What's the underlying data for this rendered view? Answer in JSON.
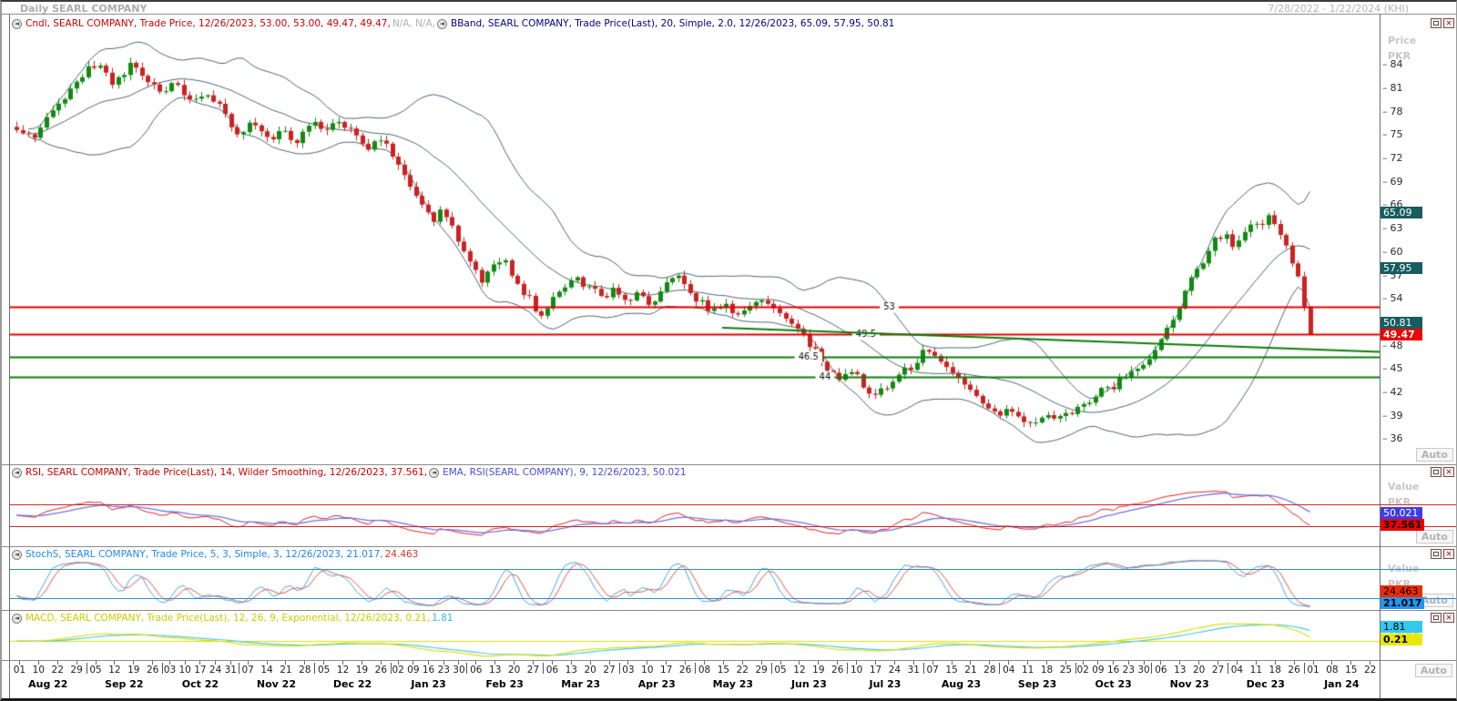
{
  "window": {
    "title": "Daily SEARL COMPANY",
    "date_range": "7/28/2022 - 1/22/2024 (KHI)",
    "auto_label": "Auto"
  },
  "colors": {
    "candle_up": "#128a12",
    "candle_down": "#cc2222",
    "bband": "#4a6672",
    "resistance": "#e00000",
    "support": "#0b7d0b",
    "rsi_line": "#e02020",
    "rsi_ema_line": "#7373de",
    "rsi_threshold": "#cc2b2b",
    "stoch_k": "#4aa3e0",
    "stoch_d": "#e05545",
    "stoch_threshold": "#2e8fd0",
    "macd_line": "#dede00",
    "macd_signal": "#49c9ef",
    "badge_teal": "#175d60",
    "badge_red": "#ee0000",
    "badge_indigo": "#3d3de8",
    "badge_orange": "#ee2b00",
    "badge_blue": "#2196f3",
    "badge_cyan": "#35c8ef",
    "badge_yellow": "#e8e800"
  },
  "panels": {
    "price": {
      "axis_label_1": "Price",
      "axis_label_2": "PKR",
      "legend_items": [
        {
          "segments": [
            {
              "t": "Cndl, SEARL COMPANY, Trade Price,  12/26/2023, 53.00, 53.00, 49.47, 49.47, ",
              "c": "#cc0000"
            },
            {
              "t": "N/A, N/A, ",
              "c": "#b0b0b0"
            }
          ]
        },
        {
          "segments": [
            {
              "t": "BBand, SEARL COMPANY, Trade Price(Last),  20, Simple, 2.0,  12/26/2023, 65.09, 57.95, 50.81",
              "c": "#000080"
            }
          ]
        }
      ],
      "badges": [
        {
          "text": "65.09",
          "v": 65.09,
          "bg": "badge_teal",
          "fg": "#ffffff",
          "bold": false
        },
        {
          "text": "57.95",
          "v": 57.95,
          "bg": "badge_teal",
          "fg": "#ffffff",
          "bold": false
        },
        {
          "text": "50.81",
          "v": 50.81,
          "bg": "badge_teal",
          "fg": "#ffffff",
          "bold": false
        },
        {
          "text": "49.47",
          "v": 49.47,
          "bg": "badge_red",
          "fg": "#ffffff",
          "bold": true
        }
      ]
    },
    "rsi": {
      "axis_label_1": "Value",
      "axis_label_2": "PKR",
      "legend_items": [
        {
          "segments": [
            {
              "t": "RSI, SEARL COMPANY, Trade Price(Last),  14, Wilder Smoothing,  12/26/2023, 37.561, ",
              "c": "#cc0000"
            }
          ]
        },
        {
          "segments": [
            {
              "t": "EMA, RSI(SEARL COMPANY),  9,  12/26/2023, 50.021",
              "c": "#4b4bd6"
            }
          ]
        }
      ],
      "badges": [
        {
          "text": "50.021",
          "v": 50.021,
          "bg": "badge_indigo",
          "fg": "#ffffff",
          "bold": false
        },
        {
          "text": "37.561",
          "v": 37.561,
          "bg": "badge_red",
          "fg": "#000000",
          "bold": true
        }
      ],
      "thresholds": [
        70,
        30
      ]
    },
    "stoch": {
      "axis_label_1": "Value",
      "axis_label_2": "PKR",
      "legend_items": [
        {
          "segments": [
            {
              "t": "StochS, SEARL COMPANY, Trade Price,  5, 3, Simple, 3,  12/26/2023, 21.017, ",
              "c": "#2288ee"
            },
            {
              "t": "24.463",
              "c": "#dd3322"
            }
          ]
        }
      ],
      "badges": [
        {
          "text": "24.463",
          "v": 24.463,
          "bg": "badge_orange",
          "fg": "#000000",
          "bold": false
        },
        {
          "text": "21.017",
          "v": 21.017,
          "bg": "badge_blue",
          "fg": "#000000",
          "bold": true
        }
      ],
      "thresholds": [
        80,
        20
      ]
    },
    "macd": {
      "axis_label_1": "Value",
      "legend_items": [
        {
          "segments": [
            {
              "t": "MACD, SEARL COMPANY, Trade Price(Last),  12, 26, 9, Exponential,  12/26/2023, 0.21, ",
              "c": "#cccc00"
            },
            {
              "t": "1.81",
              "c": "#33bbee"
            }
          ]
        }
      ],
      "badges": [
        {
          "text": "1.81",
          "v": 1.81,
          "bg": "badge_cyan",
          "fg": "#000000",
          "bold": false
        },
        {
          "text": "0.21",
          "v": 0.21,
          "bg": "badge_yellow",
          "fg": "#000000",
          "bold": true
        }
      ]
    }
  },
  "xaxis": {
    "months": [
      {
        "label": "Aug 22",
        "days": [
          "01",
          "10",
          "22",
          "29"
        ]
      },
      {
        "label": "Sep 22",
        "days": [
          "05",
          "12",
          "19",
          "26"
        ]
      },
      {
        "label": "Oct 22",
        "days": [
          "03",
          "10",
          "17",
          "24",
          "31"
        ]
      },
      {
        "label": "Nov 22",
        "days": [
          "07",
          "14",
          "21",
          "28"
        ]
      },
      {
        "label": "Dec 22",
        "days": [
          "05",
          "12",
          "19",
          "26"
        ]
      },
      {
        "label": "Jan 23",
        "days": [
          "02",
          "09",
          "16",
          "23",
          "30"
        ]
      },
      {
        "label": "Feb 23",
        "days": [
          "06",
          "13",
          "20",
          "27"
        ]
      },
      {
        "label": "Mar 23",
        "days": [
          "06",
          "13",
          "20",
          "27"
        ]
      },
      {
        "label": "Apr 23",
        "days": [
          "03",
          "10",
          "17",
          "26"
        ]
      },
      {
        "label": "May 23",
        "days": [
          "08",
          "15",
          "22",
          "29"
        ]
      },
      {
        "label": "Jun 23",
        "days": [
          "05",
          "12",
          "19",
          "26"
        ]
      },
      {
        "label": "Jul 23",
        "days": [
          "10",
          "17",
          "24",
          "31"
        ]
      },
      {
        "label": "Aug 23",
        "days": [
          "07",
          "15",
          "21",
          "28"
        ]
      },
      {
        "label": "Sep 23",
        "days": [
          "04",
          "11",
          "18",
          "25"
        ]
      },
      {
        "label": "Oct 23",
        "days": [
          "02",
          "09",
          "16",
          "23",
          "30"
        ]
      },
      {
        "label": "Nov 23",
        "days": [
          "06",
          "13",
          "20",
          "27"
        ]
      },
      {
        "label": "Dec 23",
        "days": [
          "04",
          "11",
          "18",
          "26"
        ]
      },
      {
        "label": "Jan 24",
        "days": [
          "01",
          "08",
          "15",
          "22"
        ]
      }
    ]
  },
  "chart_data": {
    "type": "candlestick",
    "title": "Daily SEARL COMPANY",
    "instrument": "SEARL COMPANY",
    "interval": "Daily",
    "x_range": [
      "Aug 22",
      "Jan 24"
    ],
    "y_axis": {
      "label": "Price PKR",
      "tick_min": 36,
      "tick_max": 84,
      "tick_step": 3,
      "scale_min": 33,
      "scale_max": 90
    },
    "last_candle": {
      "date": "12/26/2023",
      "open": 53.0,
      "high": 53.0,
      "low": 49.47,
      "close": 49.47
    },
    "bollinger": {
      "period": 20,
      "type": "Simple",
      "stdev": 2.0,
      "upper": 65.09,
      "middle": 57.95,
      "lower": 50.81
    },
    "horizontal_levels": [
      {
        "price": 53,
        "label": "53",
        "color": "resistance",
        "label_x": 0.642
      },
      {
        "price": 49.5,
        "label": "49.5",
        "color": "resistance",
        "label_x": 0.625
      },
      {
        "price": 46.5,
        "label": "46.5",
        "color": "support",
        "label_x": 0.583
      },
      {
        "price": 44,
        "label": "44",
        "color": "support",
        "label_x": 0.595
      }
    ],
    "trendline": {
      "from_frac": 0.52,
      "from_price": 50.3,
      "to_frac": 1.0,
      "to_price": 47.2,
      "color": "support"
    },
    "data_end_frac": 0.954,
    "close_keyframes": [
      [
        0,
        75.5
      ],
      [
        0.012,
        74.6
      ],
      [
        0.03,
        78.5
      ],
      [
        0.05,
        82.5
      ],
      [
        0.062,
        84.4
      ],
      [
        0.075,
        81.5
      ],
      [
        0.088,
        83.8
      ],
      [
        0.1,
        82.3
      ],
      [
        0.112,
        80.2
      ],
      [
        0.122,
        82
      ],
      [
        0.135,
        79.2
      ],
      [
        0.148,
        80.8
      ],
      [
        0.16,
        77.6
      ],
      [
        0.172,
        75.2
      ],
      [
        0.182,
        76.8
      ],
      [
        0.195,
        74.6
      ],
      [
        0.205,
        76
      ],
      [
        0.215,
        74.2
      ],
      [
        0.228,
        76.6
      ],
      [
        0.24,
        75.2
      ],
      [
        0.25,
        77
      ],
      [
        0.262,
        75.4
      ],
      [
        0.272,
        73.6
      ],
      [
        0.282,
        74.8
      ],
      [
        0.292,
        71.8
      ],
      [
        0.302,
        69.2
      ],
      [
        0.312,
        66.8
      ],
      [
        0.322,
        64.2
      ],
      [
        0.33,
        65.6
      ],
      [
        0.34,
        61.8
      ],
      [
        0.35,
        58.8
      ],
      [
        0.36,
        56
      ],
      [
        0.368,
        58
      ],
      [
        0.376,
        58.8
      ],
      [
        0.386,
        56.2
      ],
      [
        0.396,
        53.8
      ],
      [
        0.404,
        51.4
      ],
      [
        0.414,
        53.8
      ],
      [
        0.424,
        55.6
      ],
      [
        0.434,
        56.6
      ],
      [
        0.444,
        55
      ],
      [
        0.452,
        54
      ],
      [
        0.46,
        55.6
      ],
      [
        0.47,
        53.6
      ],
      [
        0.48,
        54.8
      ],
      [
        0.49,
        53.2
      ],
      [
        0.5,
        55
      ],
      [
        0.508,
        57.6
      ],
      [
        0.518,
        55.2
      ],
      [
        0.528,
        53.6
      ],
      [
        0.538,
        52.4
      ],
      [
        0.546,
        53.6
      ],
      [
        0.556,
        52
      ],
      [
        0.566,
        53.2
      ],
      [
        0.576,
        54
      ],
      [
        0.586,
        52.6
      ],
      [
        0.596,
        51.4
      ],
      [
        0.606,
        49.8
      ],
      [
        0.616,
        47.4
      ],
      [
        0.626,
        45
      ],
      [
        0.636,
        43.6
      ],
      [
        0.646,
        44.8
      ],
      [
        0.656,
        42.6
      ],
      [
        0.666,
        41.6
      ],
      [
        0.676,
        43.2
      ],
      [
        0.686,
        44.6
      ],
      [
        0.696,
        46.2
      ],
      [
        0.706,
        47.6
      ],
      [
        0.716,
        45.8
      ],
      [
        0.726,
        44
      ],
      [
        0.736,
        42.2
      ],
      [
        0.746,
        40.6
      ],
      [
        0.756,
        39
      ],
      [
        0.766,
        40.2
      ],
      [
        0.776,
        38.6
      ],
      [
        0.786,
        37.9
      ],
      [
        0.796,
        39.2
      ],
      [
        0.806,
        38.6
      ],
      [
        0.816,
        39.8
      ],
      [
        0.826,
        40.8
      ],
      [
        0.836,
        41.8
      ],
      [
        0.846,
        42.8
      ],
      [
        0.856,
        43.8
      ],
      [
        0.866,
        44.8
      ],
      [
        0.876,
        46.2
      ],
      [
        0.886,
        48.8
      ],
      [
        0.896,
        52.4
      ],
      [
        0.906,
        55.8
      ],
      [
        0.916,
        58.8
      ],
      [
        0.926,
        61.2
      ],
      [
        0.934,
        62.6
      ],
      [
        0.94,
        60.8
      ],
      [
        0.948,
        62.4
      ],
      [
        0.956,
        64.2
      ],
      [
        0.962,
        63.2
      ],
      [
        0.968,
        64.9
      ],
      [
        0.974,
        63.4
      ],
      [
        0.98,
        61.4
      ],
      [
        0.986,
        58.6
      ],
      [
        0.991,
        56.8
      ],
      [
        0.996,
        53.0
      ],
      [
        1,
        49.47
      ]
    ],
    "indicators": {
      "rsi": {
        "params": "14, Wilder Smoothing",
        "last": 37.561,
        "ema9_of_rsi": 50.021,
        "thresholds": [
          70,
          30
        ]
      },
      "stoch": {
        "params": "5, 3, Simple, 3",
        "k_last": 21.017,
        "d_last": 24.463,
        "thresholds": [
          80,
          20
        ]
      },
      "macd": {
        "params": "12, 26, 9, Exponential",
        "macd_last": 0.21,
        "signal_last": 1.81
      }
    }
  }
}
